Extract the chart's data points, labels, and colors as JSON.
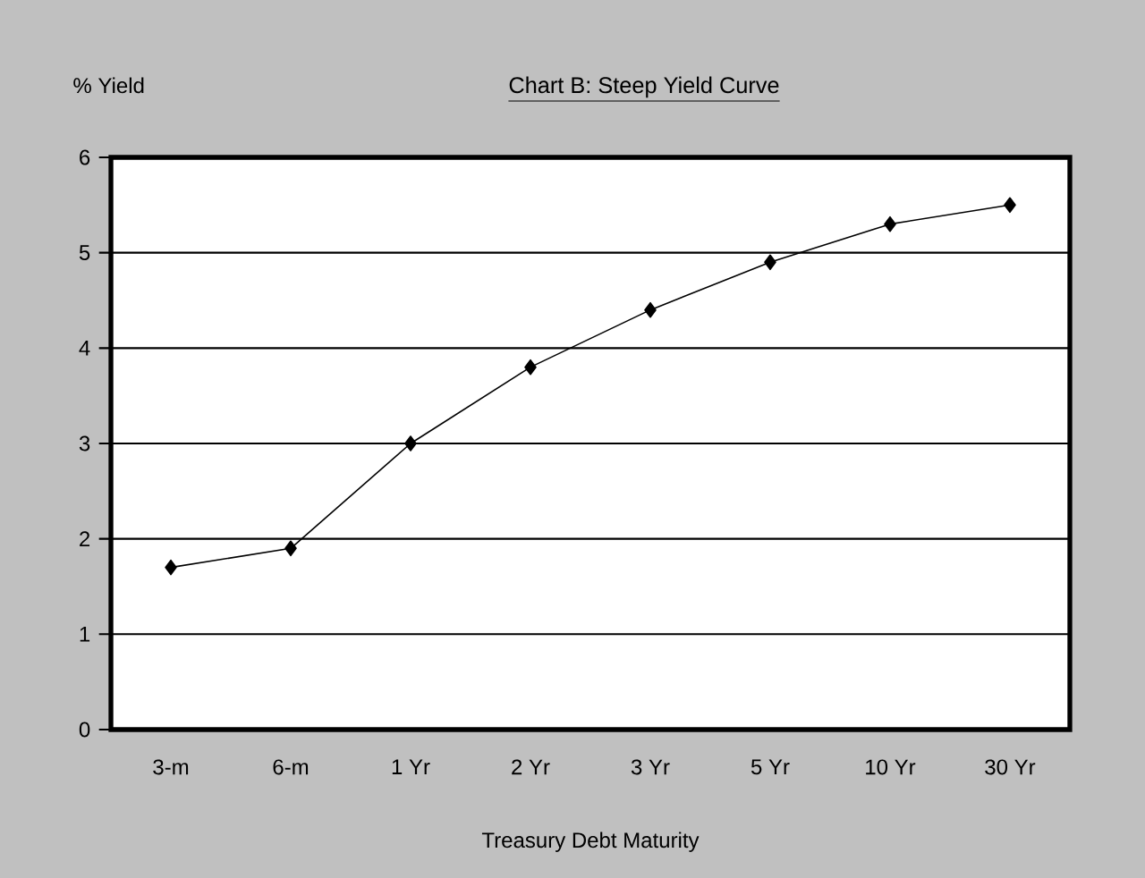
{
  "chart_data": {
    "type": "line",
    "title": "Chart B:  Steep Yield Curve",
    "xlabel": "Treasury Debt Maturity",
    "ylabel": "% Yield",
    "categories": [
      "3-m",
      "6-m",
      "1 Yr",
      "2 Yr",
      "3 Yr",
      "5 Yr",
      "10 Yr",
      "30 Yr"
    ],
    "series": [
      {
        "color": "#000000",
        "values": [
          1.7,
          1.9,
          3.0,
          3.8,
          4.4,
          4.9,
          5.3,
          5.5
        ]
      }
    ],
    "ylim": [
      0,
      6
    ],
    "yticks": [
      0,
      1,
      2,
      3,
      4,
      5,
      6
    ],
    "grid": "y",
    "marker": "diamond",
    "line_style": "solid"
  }
}
